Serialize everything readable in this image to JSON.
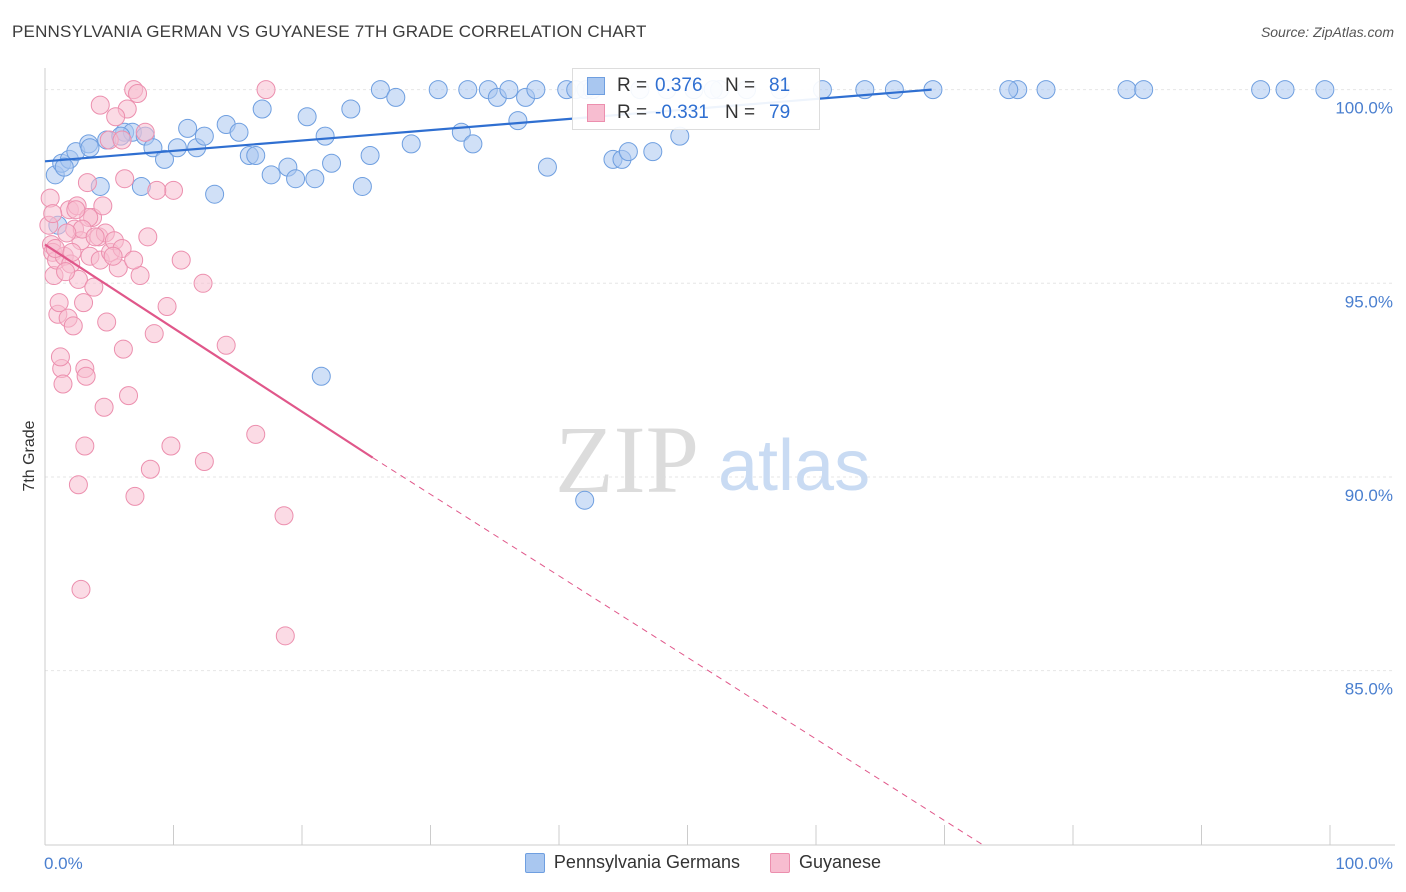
{
  "title": "PENNSYLVANIA GERMAN VS GUYANESE 7TH GRADE CORRELATION CHART",
  "source": "Source: ZipAtlas.com",
  "watermark": {
    "zip": "ZIP",
    "atlas": "atlas"
  },
  "legend": {
    "rows": [
      {
        "r_label": "R =",
        "r_value": "0.376",
        "n_label": "N =",
        "n_value": "81",
        "color": "#a9c7f0",
        "border": "#6f9fe0"
      },
      {
        "r_label": "R =",
        "r_value": "-0.331",
        "n_label": "N =",
        "n_value": "79",
        "color": "#f7bdd0",
        "border": "#ec8fae"
      }
    ]
  },
  "bottom_legend": [
    "Pennsylvania Germans",
    "Guyanese"
  ],
  "chart_data": {
    "type": "scatter",
    "title": "PENNSYLVANIA GERMAN VS GUYANESE 7TH GRADE CORRELATION CHART",
    "xlabel": "",
    "ylabel": "7th Grade",
    "xlim": [
      0,
      100
    ],
    "ylim": [
      80.5,
      100.3
    ],
    "x_tick_labels": [
      {
        "value": 0,
        "label": "0.0%"
      },
      {
        "value": 100,
        "label": "100.0%"
      }
    ],
    "y_tick_labels": [
      {
        "value": 100,
        "label": "100.0%"
      },
      {
        "value": 95,
        "label": "95.0%"
      },
      {
        "value": 90,
        "label": "90.0%"
      },
      {
        "value": 85,
        "label": "85.0%"
      }
    ],
    "grid": true,
    "series": [
      {
        "name": "Pennsylvania Germans",
        "color": "#a9c7f0",
        "stroke": "#6f9fe0",
        "line_color": "#2f6fd1",
        "trend": {
          "x0": 0,
          "y0": 98.15,
          "x1": 69,
          "y1": 100.0,
          "dashed_to": null
        },
        "points": [
          [
            0.8,
            97.8
          ],
          [
            1.3,
            98.1
          ],
          [
            1.9,
            98.2
          ],
          [
            2.4,
            98.4
          ],
          [
            3.4,
            98.6
          ],
          [
            4.8,
            98.7
          ],
          [
            6.2,
            98.9
          ],
          [
            6.8,
            98.9
          ],
          [
            7.8,
            98.8
          ],
          [
            8.4,
            98.5
          ],
          [
            9.3,
            98.2
          ],
          [
            10.3,
            98.5
          ],
          [
            11.1,
            99.0
          ],
          [
            11.8,
            98.5
          ],
          [
            12.4,
            98.8
          ],
          [
            14.1,
            99.1
          ],
          [
            15.1,
            98.9
          ],
          [
            15.9,
            98.3
          ],
          [
            16.9,
            99.5
          ],
          [
            17.6,
            97.8
          ],
          [
            18.9,
            98.0
          ],
          [
            19.5,
            97.7
          ],
          [
            20.4,
            99.3
          ],
          [
            21.8,
            98.8
          ],
          [
            22.3,
            98.1
          ],
          [
            23.8,
            99.5
          ],
          [
            24.7,
            97.5
          ],
          [
            25.3,
            98.3
          ],
          [
            26.1,
            100.0
          ],
          [
            27.3,
            99.8
          ],
          [
            28.5,
            98.6
          ],
          [
            30.6,
            100.0
          ],
          [
            32.4,
            98.9
          ],
          [
            32.9,
            100.0
          ],
          [
            34.5,
            100.0
          ],
          [
            35.2,
            99.8
          ],
          [
            36.1,
            100.0
          ],
          [
            36.8,
            99.2
          ],
          [
            37.4,
            99.8
          ],
          [
            38.2,
            100.0
          ],
          [
            39.1,
            98.0
          ],
          [
            40.6,
            100.0
          ],
          [
            41.3,
            100.0
          ],
          [
            42.1,
            100.0
          ],
          [
            42.6,
            100.0
          ],
          [
            44.2,
            98.2
          ],
          [
            44.9,
            98.2
          ],
          [
            45.4,
            98.4
          ],
          [
            46.3,
            100.0
          ],
          [
            47.3,
            98.4
          ],
          [
            48.4,
            100.0
          ],
          [
            49.4,
            98.8
          ],
          [
            50.5,
            100.0
          ],
          [
            52.5,
            100.0
          ],
          [
            54.6,
            100.0
          ],
          [
            57.2,
            100.0
          ],
          [
            60.5,
            100.0
          ],
          [
            63.8,
            100.0
          ],
          [
            66.1,
            100.0
          ],
          [
            69.1,
            100.0
          ],
          [
            75.7,
            100.0
          ],
          [
            77.9,
            100.0
          ],
          [
            84.2,
            100.0
          ],
          [
            85.5,
            100.0
          ],
          [
            94.6,
            100.0
          ],
          [
            96.5,
            100.0
          ],
          [
            99.6,
            100.0
          ],
          [
            3.5,
            98.5
          ],
          [
            5.9,
            98.8
          ],
          [
            7.5,
            97.5
          ],
          [
            13.2,
            97.3
          ],
          [
            1.5,
            98.0
          ],
          [
            4.3,
            97.5
          ],
          [
            16.4,
            98.3
          ],
          [
            21.0,
            97.7
          ],
          [
            33.3,
            98.6
          ],
          [
            52.0,
            100.0
          ],
          [
            75.0,
            100.0
          ],
          [
            21.5,
            92.6
          ],
          [
            42.0,
            89.4
          ],
          [
            1.0,
            96.5
          ]
        ]
      },
      {
        "name": "Guyanese",
        "color": "#f7bdd0",
        "stroke": "#ec8fae",
        "line_color": "#e0578a",
        "trend": {
          "x0": 0,
          "y0": 96.0,
          "x1": 25.5,
          "y1": 90.5,
          "dashed_to": {
            "x": 73,
            "y": 80.5
          }
        },
        "points": [
          [
            0.3,
            96.5
          ],
          [
            0.5,
            96.0
          ],
          [
            0.6,
            95.8
          ],
          [
            0.7,
            95.2
          ],
          [
            0.9,
            95.6
          ],
          [
            1.0,
            94.2
          ],
          [
            1.1,
            94.5
          ],
          [
            1.3,
            92.8
          ],
          [
            1.4,
            92.4
          ],
          [
            1.5,
            95.7
          ],
          [
            1.8,
            94.1
          ],
          [
            1.9,
            96.9
          ],
          [
            2.0,
            95.5
          ],
          [
            2.3,
            96.4
          ],
          [
            2.5,
            97.0
          ],
          [
            2.6,
            95.1
          ],
          [
            2.8,
            96.1
          ],
          [
            3.0,
            94.5
          ],
          [
            3.1,
            92.8
          ],
          [
            3.3,
            97.6
          ],
          [
            3.5,
            95.7
          ],
          [
            3.7,
            96.7
          ],
          [
            3.8,
            94.9
          ],
          [
            4.2,
            96.2
          ],
          [
            4.3,
            95.6
          ],
          [
            4.5,
            97.0
          ],
          [
            4.7,
            96.3
          ],
          [
            4.8,
            94.0
          ],
          [
            5.1,
            95.8
          ],
          [
            5.4,
            96.1
          ],
          [
            5.7,
            95.4
          ],
          [
            6.0,
            95.9
          ],
          [
            6.2,
            97.7
          ],
          [
            6.4,
            99.5
          ],
          [
            6.9,
            100.0
          ],
          [
            7.2,
            99.9
          ],
          [
            7.4,
            95.2
          ],
          [
            8.0,
            96.2
          ],
          [
            8.5,
            93.7
          ],
          [
            9.5,
            94.4
          ],
          [
            10.0,
            97.4
          ],
          [
            10.6,
            95.6
          ],
          [
            1.2,
            93.1
          ],
          [
            2.2,
            93.9
          ],
          [
            3.2,
            92.6
          ],
          [
            4.6,
            91.8
          ],
          [
            6.1,
            93.3
          ],
          [
            6.5,
            92.1
          ],
          [
            2.6,
            89.8
          ],
          [
            3.1,
            90.8
          ],
          [
            7.0,
            89.5
          ],
          [
            8.2,
            90.2
          ],
          [
            9.8,
            90.8
          ],
          [
            12.4,
            90.4
          ],
          [
            16.4,
            91.1
          ],
          [
            12.3,
            95.0
          ],
          [
            14.1,
            93.4
          ],
          [
            2.8,
            87.1
          ],
          [
            18.6,
            89.0
          ],
          [
            17.2,
            100.0
          ],
          [
            18.7,
            85.9
          ],
          [
            5.5,
            99.3
          ],
          [
            5.0,
            98.7
          ],
          [
            4.3,
            99.6
          ],
          [
            6.0,
            98.7
          ],
          [
            3.4,
            96.7
          ],
          [
            0.8,
            95.9
          ],
          [
            1.6,
            95.3
          ],
          [
            2.9,
            96.4
          ],
          [
            0.4,
            97.2
          ],
          [
            1.7,
            96.3
          ],
          [
            2.1,
            95.8
          ],
          [
            3.9,
            96.2
          ],
          [
            5.3,
            95.7
          ],
          [
            6.9,
            95.6
          ],
          [
            7.8,
            98.9
          ],
          [
            2.4,
            96.9
          ],
          [
            0.6,
            96.8
          ],
          [
            8.7,
            97.4
          ]
        ]
      }
    ]
  }
}
